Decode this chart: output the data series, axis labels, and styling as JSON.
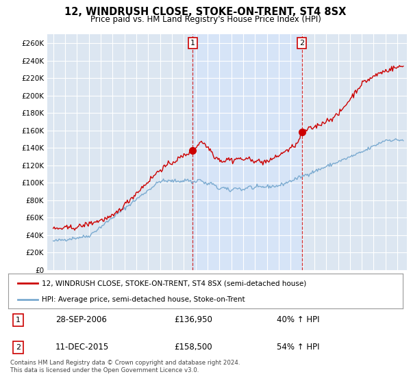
{
  "title": "12, WINDRUSH CLOSE, STOKE-ON-TRENT, ST4 8SX",
  "subtitle": "Price paid vs. HM Land Registry's House Price Index (HPI)",
  "ylabel_ticks": [
    "£0",
    "£20K",
    "£40K",
    "£60K",
    "£80K",
    "£100K",
    "£120K",
    "£140K",
    "£160K",
    "£180K",
    "£200K",
    "£220K",
    "£240K",
    "£260K"
  ],
  "ytick_values": [
    0,
    20000,
    40000,
    60000,
    80000,
    100000,
    120000,
    140000,
    160000,
    180000,
    200000,
    220000,
    240000,
    260000
  ],
  "ylim": [
    0,
    270000
  ],
  "xlim_start": 1994.5,
  "xlim_end": 2024.8,
  "red_color": "#cc0000",
  "blue_color": "#7aaad0",
  "highlight_color": "#d6e4f7",
  "marker1_x": 2006.75,
  "marker1_y": 136950,
  "marker2_x": 2015.95,
  "marker2_y": 158500,
  "legend_line1": "12, WINDRUSH CLOSE, STOKE-ON-TRENT, ST4 8SX (semi-detached house)",
  "legend_line2": "HPI: Average price, semi-detached house, Stoke-on-Trent",
  "table_row1_num": "1",
  "table_row1_date": "28-SEP-2006",
  "table_row1_price": "£136,950",
  "table_row1_hpi": "40% ↑ HPI",
  "table_row2_num": "2",
  "table_row2_date": "11-DEC-2015",
  "table_row2_price": "£158,500",
  "table_row2_hpi": "54% ↑ HPI",
  "footnote": "Contains HM Land Registry data © Crown copyright and database right 2024.\nThis data is licensed under the Open Government Licence v3.0.",
  "background_color": "#ffffff",
  "plot_bg_color": "#dce6f1",
  "grid_color": "#ffffff"
}
